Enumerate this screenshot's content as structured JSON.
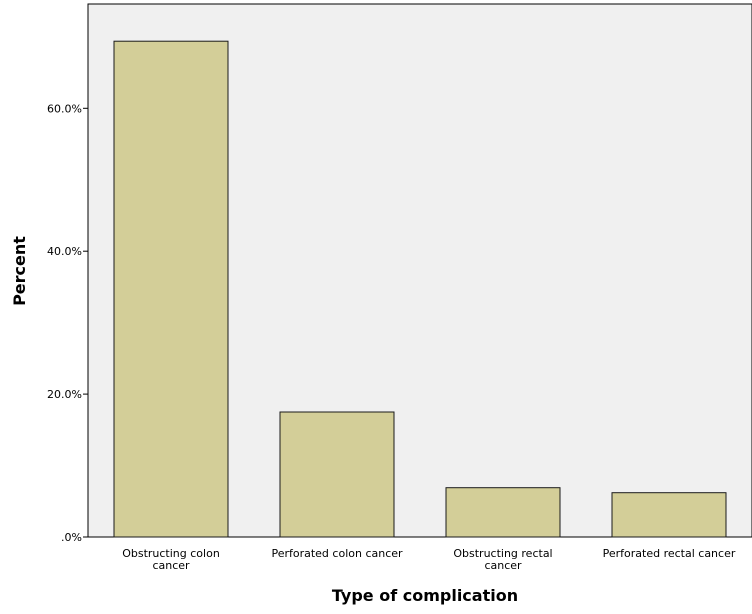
{
  "chart_data": {
    "type": "bar",
    "categories": [
      [
        "Obstructing colon",
        "cancer"
      ],
      [
        "Perforated colon cancer"
      ],
      [
        "Obstructing rectal",
        "cancer"
      ],
      [
        "Perforated rectal cancer"
      ]
    ],
    "values": [
      69.4,
      17.5,
      6.9,
      6.2
    ],
    "xlabel": "Type of complication",
    "ylabel": "Percent",
    "ylim": [
      0,
      74.6
    ],
    "yticks": [
      0,
      20,
      40,
      60
    ],
    "ytick_labels": [
      ".0%",
      "20.0%",
      "40.0%",
      "60.0%"
    ],
    "grid": false,
    "legend": "none",
    "colors": {
      "bar_fill": "#d3ce98",
      "bar_stroke": "#1a1a1a",
      "plot_background": "#f0f0f0",
      "axis": "#000000"
    }
  }
}
